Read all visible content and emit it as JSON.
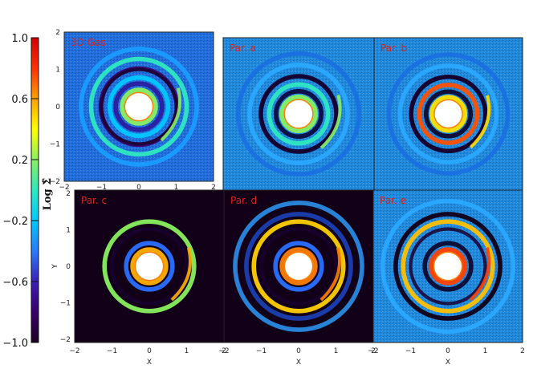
{
  "colorbar": {
    "label": "Log Σ̃",
    "ticks": [
      "1.0",
      "0.6",
      "0.2",
      "−0.2",
      "−0.6",
      "−1.0"
    ],
    "tick_values": [
      1.0,
      0.6,
      0.2,
      -0.2,
      -0.6,
      -1.0
    ],
    "range": [
      -1.0,
      1.0
    ],
    "colors": [
      "#1a0020",
      "#3a006a",
      "#3b1fb8",
      "#2a7bff",
      "#00c8ff",
      "#2ee8c0",
      "#8af060",
      "#ffff00",
      "#ffa000",
      "#ff3000",
      "#d00000"
    ]
  },
  "panels": [
    {
      "id": "gas",
      "title": "3D Gas",
      "ring_radii": [
        0.45,
        0.62,
        0.78,
        1.02,
        1.28,
        1.55
      ],
      "bg": "#1f6ee0",
      "ring_colors": [
        "#8af060",
        "#2a1fa0",
        "#00c8ff",
        "#3a006a",
        "#2ee8c0",
        "#1a9cff"
      ],
      "gap_radius": 1.0,
      "hole_radius": 0.38
    },
    {
      "id": "a",
      "title": "Par. a",
      "ring_radii": [
        0.45,
        0.6,
        0.78,
        1.0,
        1.3,
        1.6
      ],
      "bg": "#1f8be0",
      "ring_colors": [
        "#8af060",
        "#0b0b40",
        "#2ee8c0",
        "#0b0b40",
        "#2aa8ff",
        "#1a70e0"
      ],
      "gap_radius": 1.0,
      "hole_radius": 0.38
    },
    {
      "id": "b",
      "title": "Par. b",
      "ring_radii": [
        0.45,
        0.6,
        0.78,
        1.0,
        1.3,
        1.6
      ],
      "bg": "#1f8be0",
      "ring_colors": [
        "#ffe000",
        "#0b0b30",
        "#ff5000",
        "#0b0b30",
        "#2aa8ff",
        "#1a70e0"
      ],
      "gap_radius": 1.0,
      "hole_radius": 0.38
    },
    {
      "id": "c",
      "title": "Par. c",
      "ring_radii": [
        0.45,
        0.62,
        1.2,
        1.35
      ],
      "bg": "#120018",
      "ring_colors": [
        "#ffb000",
        "#2a70ff",
        "#8af060",
        "#120018"
      ],
      "gap_radius": 1.0,
      "hole_radius": 0.38
    },
    {
      "id": "d",
      "title": "Par. d",
      "ring_radii": [
        0.45,
        0.62,
        1.2,
        1.4,
        1.7
      ],
      "bg": "#120018",
      "ring_colors": [
        "#ff8000",
        "#2a70ff",
        "#ffd000",
        "#1a3fb0",
        "#2a8ae0"
      ],
      "gap_radius": 1.0,
      "hole_radius": 0.38
    },
    {
      "id": "e",
      "title": "Par. e",
      "ring_radii": [
        0.45,
        0.62,
        1.2,
        1.4,
        1.75
      ],
      "bg": "#1f8be0",
      "ring_colors": [
        "#ff4000",
        "#0b0b30",
        "#ffc000",
        "#120018",
        "#2aa8ff"
      ],
      "gap_radius": 1.0,
      "hole_radius": 0.38
    }
  ],
  "axes": {
    "xlabel": "X",
    "ylabel": "Y",
    "xticks": [
      "−2",
      "−1",
      "0",
      "1",
      "2"
    ],
    "yticks": [
      "2",
      "1",
      "0",
      "−1",
      "−2"
    ],
    "bottom_row_x_first_ticks": [
      "−2",
      "−2",
      "−2"
    ],
    "ticks_joined": [
      "2",
      "2"
    ]
  }
}
